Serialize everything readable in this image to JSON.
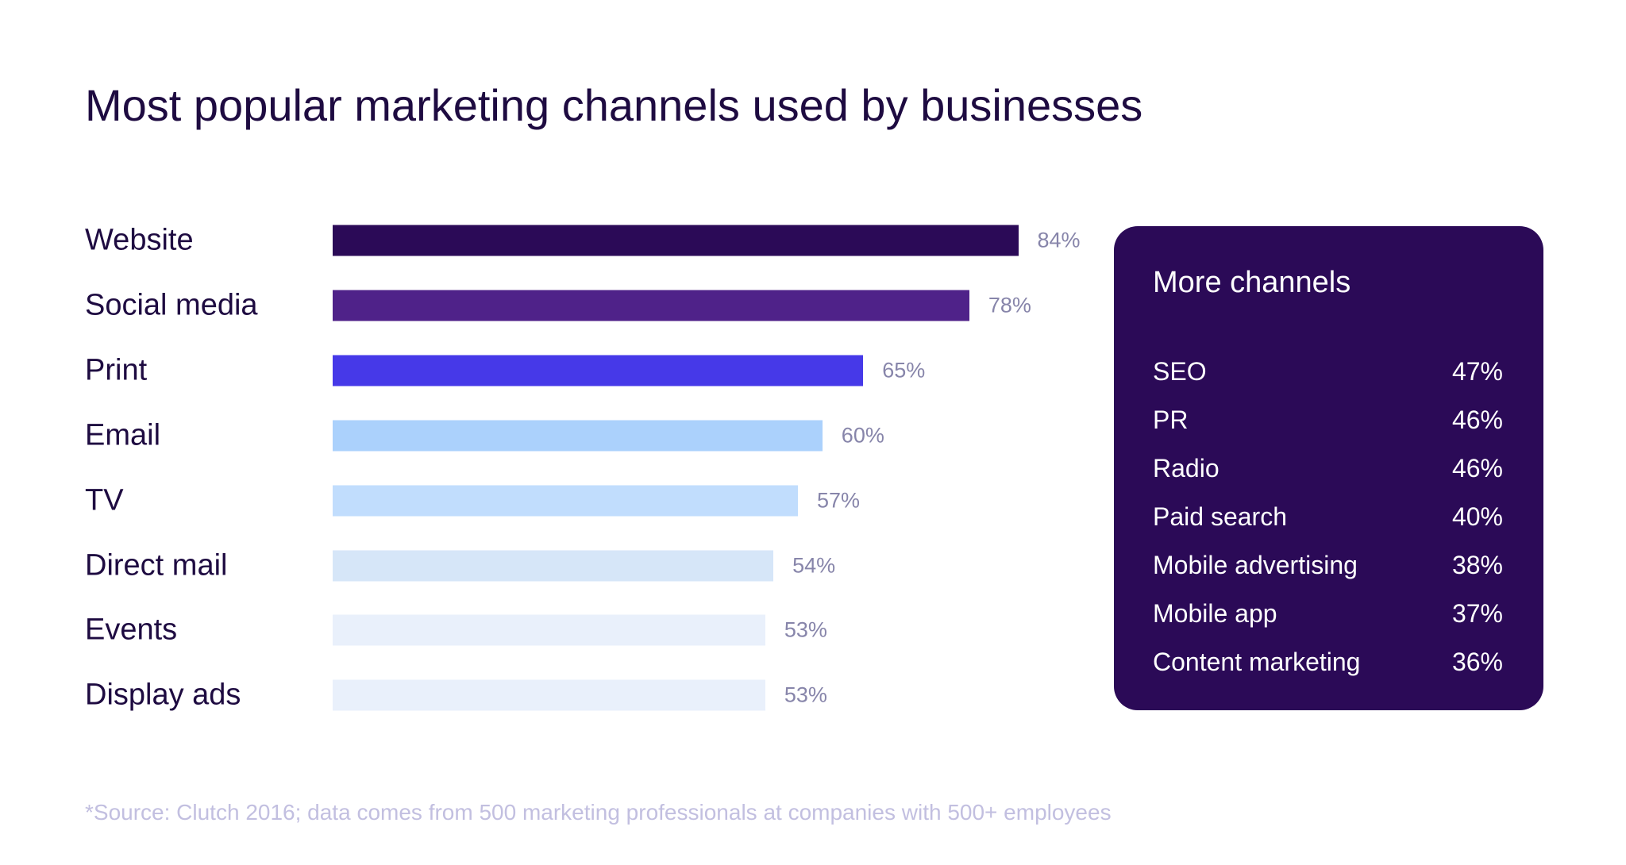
{
  "chart_data": {
    "type": "bar",
    "orientation": "horizontal",
    "title": "Most popular marketing channels used by businesses",
    "categories": [
      "Website",
      "Social media",
      "Print",
      "Email",
      "TV",
      "Direct mail",
      "Events",
      "Display ads"
    ],
    "values": [
      84,
      78,
      65,
      60,
      57,
      54,
      53,
      53
    ],
    "value_labels": [
      "84%",
      "78%",
      "65%",
      "60%",
      "57%",
      "54%",
      "53%",
      "53%"
    ],
    "bar_colors": [
      "#2b0a57",
      "#4f2289",
      "#4639e8",
      "#abd1fc",
      "#c1ddfd",
      "#d6e6f8",
      "#e9f0fb",
      "#e9f0fb"
    ],
    "xlim": [
      0,
      100
    ],
    "grid": false,
    "xlabel": "",
    "ylabel": ""
  },
  "panel": {
    "title": "More channels",
    "items": [
      {
        "name": "SEO",
        "value": "47%"
      },
      {
        "name": "PR",
        "value": "46%"
      },
      {
        "name": "Radio",
        "value": "46%"
      },
      {
        "name": "Paid search",
        "value": "40%"
      },
      {
        "name": "Mobile advertising",
        "value": "38%"
      },
      {
        "name": "Mobile app",
        "value": "37%"
      },
      {
        "name": "Content marketing",
        "value": "36%"
      }
    ],
    "background": "#2b0a57"
  },
  "footnote": "*Source: Clutch 2016; data comes from 500 marketing professionals at companies with 500+ employees"
}
